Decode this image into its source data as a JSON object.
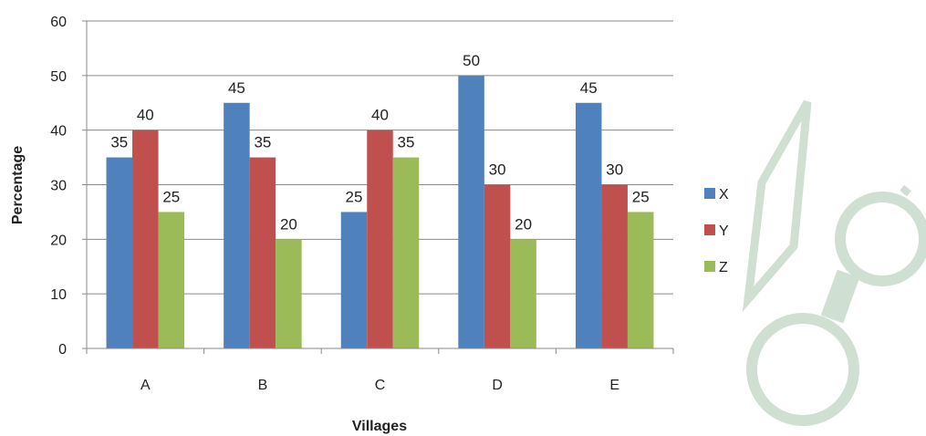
{
  "chart_data": {
    "type": "bar",
    "categories": [
      "A",
      "B",
      "C",
      "D",
      "E"
    ],
    "series": [
      {
        "name": "X",
        "values": [
          35,
          45,
          25,
          50,
          45
        ],
        "color": "#4F81BD"
      },
      {
        "name": "Y",
        "values": [
          40,
          35,
          40,
          30,
          30
        ],
        "color": "#C0504D"
      },
      {
        "name": "Z",
        "values": [
          25,
          20,
          35,
          20,
          25
        ],
        "color": "#9BBB59"
      }
    ],
    "title": "",
    "xlabel": "Villages",
    "ylabel": "Percentage",
    "ylim": [
      0,
      60
    ],
    "yticks": [
      0,
      10,
      20,
      30,
      40,
      50,
      60
    ],
    "grid": true,
    "legend_position": "right",
    "data_labels": true
  },
  "watermark": {
    "description": "faint light-green glasses/pencil logo watermark on right side",
    "color": "#cfe0d3"
  }
}
